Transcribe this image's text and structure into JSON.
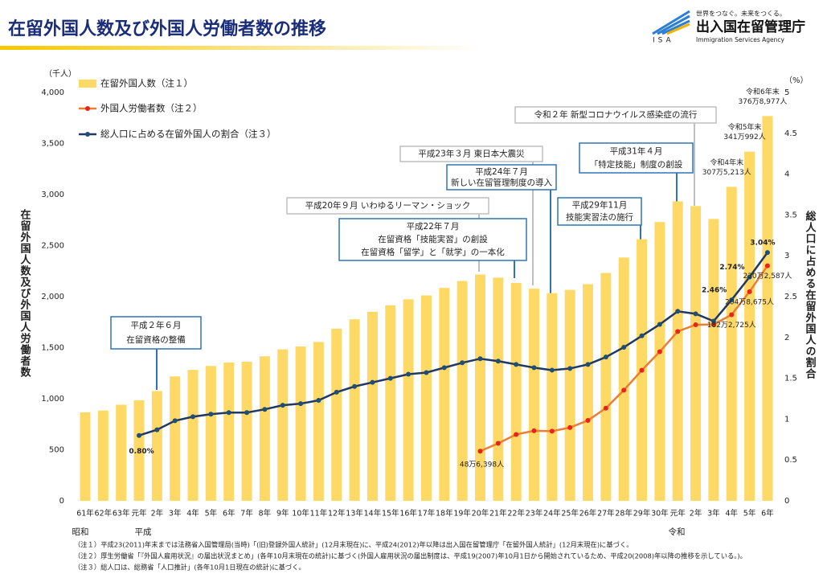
{
  "header": {
    "title": "在留外国人数及び外国人労働者数の推移",
    "slogan": "世界をつなぐ。未来をつくる。",
    "agency": "出入国在留管理庁",
    "agency_en": "Immigration Services Agency",
    "abbr": "ISA"
  },
  "chart_data": {
    "type": "bar-line",
    "y_unit": "（千人）",
    "y2_unit": "（%）",
    "ylabel": "在留外国人数及び外国人労働者数",
    "y2label": "総人口に占める在留外国人の割合",
    "categories": [
      "61年",
      "62年",
      "63年",
      "元年",
      "2年",
      "3年",
      "4年",
      "5年",
      "6年",
      "7年",
      "8年",
      "9年",
      "10年",
      "11年",
      "12年",
      "13年",
      "14年",
      "15年",
      "16年",
      "17年",
      "18年",
      "19年",
      "20年",
      "21年",
      "22年",
      "23年",
      "24年",
      "25年",
      "26年",
      "27年",
      "28年",
      "29年",
      "30年",
      "元年",
      "2年",
      "3年",
      "4年",
      "5年",
      "6年"
    ],
    "eras": [
      "昭和",
      "平成",
      "令和"
    ],
    "series": [
      {
        "name": "在留外国人数（注１）",
        "type": "bar",
        "color": "#ffd966",
        "values": [
          867,
          884,
          941,
          985,
          1075,
          1219,
          1282,
          1321,
          1354,
          1362,
          1415,
          1483,
          1512,
          1556,
          1686,
          1778,
          1852,
          1915,
          1974,
          2012,
          2085,
          2153,
          2217,
          2186,
          2134,
          2078,
          2034,
          2066,
          2122,
          2232,
          2383,
          2562,
          2731,
          2933,
          2887,
          2761,
          3075.213,
          3419.992,
          3768.977
        ],
        "value_labels": [
          null,
          null,
          null,
          null,
          null,
          null,
          null,
          null,
          null,
          null,
          null,
          null,
          null,
          null,
          null,
          null,
          null,
          null,
          null,
          null,
          null,
          null,
          null,
          null,
          null,
          null,
          null,
          null,
          null,
          null,
          null,
          null,
          null,
          null,
          null,
          null,
          [
            "令和4年末",
            "307万5,213人"
          ],
          [
            "令和5年末",
            "341万992人"
          ],
          [
            "令和6年末",
            "376万8,977人"
          ]
        ]
      },
      {
        "name": "外国人労働者数（注２）",
        "type": "line",
        "color": "#ed7d31",
        "marker_color": "#e8231f",
        "values": [
          null,
          null,
          null,
          null,
          null,
          null,
          null,
          null,
          null,
          null,
          null,
          null,
          null,
          null,
          null,
          null,
          null,
          null,
          null,
          null,
          null,
          null,
          486.398,
          562.818,
          649.982,
          686.246,
          682.45,
          717.504,
          787.627,
          907.896,
          1083.769,
          1278.67,
          1460.463,
          1658.804,
          1724.328,
          1727.221,
          1822.725,
          2048.675,
          2302.587
        ],
        "value_labels": [
          null,
          null,
          null,
          null,
          null,
          null,
          null,
          null,
          null,
          null,
          null,
          null,
          null,
          null,
          null,
          null,
          null,
          null,
          null,
          null,
          null,
          null,
          "48万6,398人",
          null,
          null,
          null,
          null,
          null,
          null,
          null,
          null,
          null,
          null,
          null,
          null,
          null,
          "182万2,725人",
          "204万8,675人",
          "230万2,587人"
        ]
      },
      {
        "name": "総人口に占める在留外国人の割合（注３）",
        "type": "line",
        "axis": "y2",
        "color": "#1f3864",
        "marker_color": "#1f4e79",
        "values": [
          null,
          null,
          null,
          0.8,
          0.87,
          0.98,
          1.03,
          1.06,
          1.08,
          1.08,
          1.12,
          1.17,
          1.19,
          1.23,
          1.33,
          1.4,
          1.45,
          1.5,
          1.55,
          1.57,
          1.63,
          1.69,
          1.74,
          1.71,
          1.67,
          1.63,
          1.6,
          1.62,
          1.67,
          1.76,
          1.88,
          2.02,
          2.16,
          2.32,
          2.29,
          2.2,
          2.46,
          2.74,
          3.04
        ],
        "value_labels": [
          null,
          null,
          null,
          "0.80%",
          null,
          null,
          null,
          null,
          null,
          null,
          null,
          null,
          null,
          null,
          null,
          null,
          null,
          null,
          null,
          null,
          null,
          null,
          null,
          null,
          null,
          null,
          null,
          null,
          null,
          null,
          null,
          null,
          null,
          null,
          null,
          null,
          "2.46%",
          "2.74%",
          "3.04%"
        ]
      }
    ],
    "ylim": [
      0,
      4000
    ],
    "yticks": [
      0,
      500,
      {
        "value": 1000,
        "label": "1,000"
      },
      {
        "value": 1500,
        "label": "1,500"
      },
      {
        "value": 2000,
        "label": "2,000"
      },
      {
        "value": 2500,
        "label": "2,500"
      },
      {
        "value": 3000,
        "label": "3,000"
      },
      {
        "value": 3500,
        "label": "3,500"
      },
      {
        "value": 4000,
        "label": "4,000"
      }
    ],
    "y2lim": [
      0,
      5
    ],
    "y2ticks": [
      0,
      0.5,
      1,
      1.5,
      2,
      2.5,
      3,
      3.5,
      4,
      4.5,
      5
    ],
    "grid": false,
    "annotations": [
      {
        "lines": [
          "平成２年６月",
          "在留資格の整備"
        ],
        "style": "blue"
      },
      {
        "lines": [
          "平成20年９月 いわゆるリーマン・ショック"
        ],
        "style": "gray"
      },
      {
        "lines": [
          "平成22年７月",
          "在留資格「技能実習」の創設",
          "在留資格「留学」と「就学」の一本化"
        ],
        "style": "blue"
      },
      {
        "lines": [
          "平成23年３月 東日本大震災"
        ],
        "style": "gray"
      },
      {
        "lines": [
          "平成24年７月",
          "新しい在留管理制度の導入"
        ],
        "style": "blue"
      },
      {
        "lines": [
          "平成29年11月",
          "技能実習法の施行"
        ],
        "style": "blue"
      },
      {
        "lines": [
          "平成31年４月",
          "「特定技能」制度の創設"
        ],
        "style": "blue"
      },
      {
        "lines": [
          "令和２年 新型コロナウイルス感染症の流行"
        ],
        "style": "gray"
      }
    ]
  },
  "notes": [
    "（注１）平成23(2011)年末までは法務省入国管理局(当時)「(旧)登録外国人統計」(12月末現在)に、平成24(2012)年以降は出入国在留管理庁「在留外国人統計」(12月末現在)に基づく。",
    "（注２）厚生労働省「『外国人雇用状況』の届出状況まとめ」(各年10月末現在の統計)に基づく(外国人雇用状況の届出制度は、平成19(2007)年10月1日から開始されているため、平成20(2008)年以降の推移を示している。)。",
    "（注３）総人口は、総務省「人口推計」(各年10月1日現在の統計)に基づく。"
  ]
}
